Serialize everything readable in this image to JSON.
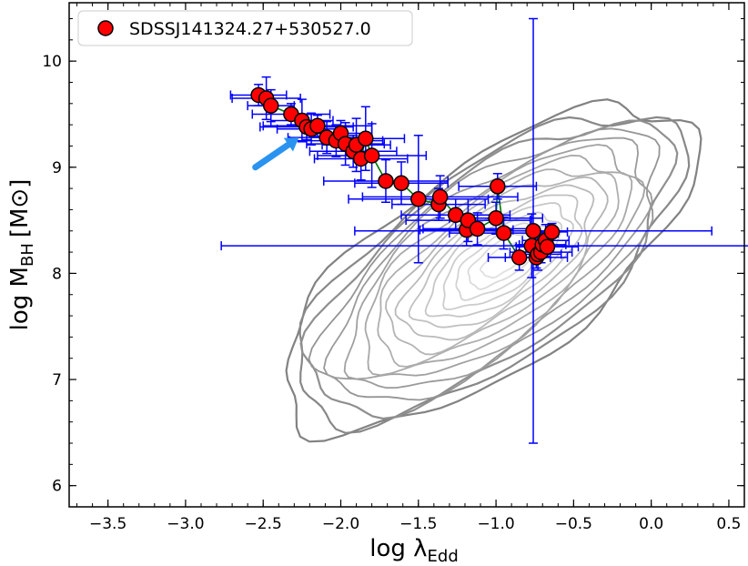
{
  "chart_data": {
    "type": "scatter",
    "xlabel_main": "log λ",
    "xlabel_sub": "Edd",
    "ylabel_main": "log M",
    "ylabel_sub": "BH",
    "ylabel_unit": "[M⊙]",
    "xlim": [
      -3.75,
      0.6
    ],
    "ylim": [
      5.8,
      10.55
    ],
    "x_ticks": [
      -3.5,
      -3.0,
      -2.5,
      -2.0,
      -1.5,
      -1.0,
      -0.5,
      0.0,
      0.5
    ],
    "x_tick_labels": [
      "−3.5",
      "−3.0",
      "−2.5",
      "−2.0",
      "−1.5",
      "−1.0",
      "−0.5",
      "0.0",
      "0.5"
    ],
    "y_ticks": [
      6,
      7,
      8,
      9,
      10
    ],
    "y_tick_labels": [
      "6",
      "7",
      "8",
      "9",
      "10"
    ],
    "legend_position": "top-left",
    "series": [
      {
        "name": "SDSSJ141324.27+530527.0",
        "marker_color": "#ff0000",
        "errorbar_color": "#0000ff",
        "line_color": "#007700",
        "x": [
          -2.53,
          -2.48,
          -2.45,
          -2.32,
          -2.25,
          -2.22,
          -2.19,
          -2.15,
          -2.09,
          -2.03,
          -2.0,
          -1.97,
          -1.92,
          -1.9,
          -1.87,
          -1.84,
          -1.8,
          -1.71,
          -1.61,
          -1.5,
          -1.37,
          -1.36,
          -1.26,
          -1.19,
          -1.18,
          -1.12,
          -1.0,
          -0.99,
          -0.95,
          -0.85,
          -0.77,
          -0.76,
          -0.74,
          -0.73,
          -0.71,
          -0.7,
          -0.68,
          -0.67,
          -0.64
        ],
        "y": [
          9.68,
          9.65,
          9.58,
          9.5,
          9.44,
          9.38,
          9.36,
          9.39,
          9.28,
          9.25,
          9.32,
          9.22,
          9.15,
          9.21,
          9.08,
          9.27,
          9.11,
          8.87,
          8.85,
          8.7,
          8.65,
          8.72,
          8.55,
          8.41,
          8.5,
          8.42,
          8.52,
          8.82,
          8.38,
          8.15,
          8.26,
          8.4,
          8.15,
          8.18,
          8.2,
          8.27,
          8.31,
          8.25,
          8.39
        ],
        "xerr": [
          0.18,
          0.22,
          0.15,
          0.25,
          0.2,
          0.3,
          0.22,
          0.35,
          0.25,
          0.3,
          0.2,
          0.25,
          0.28,
          0.22,
          0.3,
          0.25,
          0.35,
          0.4,
          0.3,
          0.45,
          0.3,
          0.5,
          0.35,
          0.3,
          0.4,
          0.35,
          0.3,
          0.25,
          0.35,
          0.2,
          2.0,
          1.15,
          0.2,
          0.15,
          0.2,
          0.15,
          0.15,
          0.2,
          0.1
        ],
        "yerr": [
          0.1,
          0.2,
          0.15,
          0.1,
          0.2,
          0.12,
          0.15,
          0.1,
          0.15,
          0.15,
          0.12,
          0.2,
          0.15,
          0.25,
          0.2,
          0.3,
          0.3,
          0.2,
          0.2,
          0.6,
          0.15,
          0.2,
          0.15,
          0.15,
          0.2,
          0.15,
          0.15,
          0.12,
          0.15,
          0.12,
          0.3,
          2.0,
          0.1,
          0.15,
          0.1,
          0.1,
          0.15,
          0.1,
          0.08
        ]
      }
    ],
    "arrow": {
      "from": [
        -2.55,
        9.0
      ],
      "to": [
        -2.27,
        9.28
      ],
      "color": "#2a93f0"
    },
    "contour_color": "#888888"
  }
}
